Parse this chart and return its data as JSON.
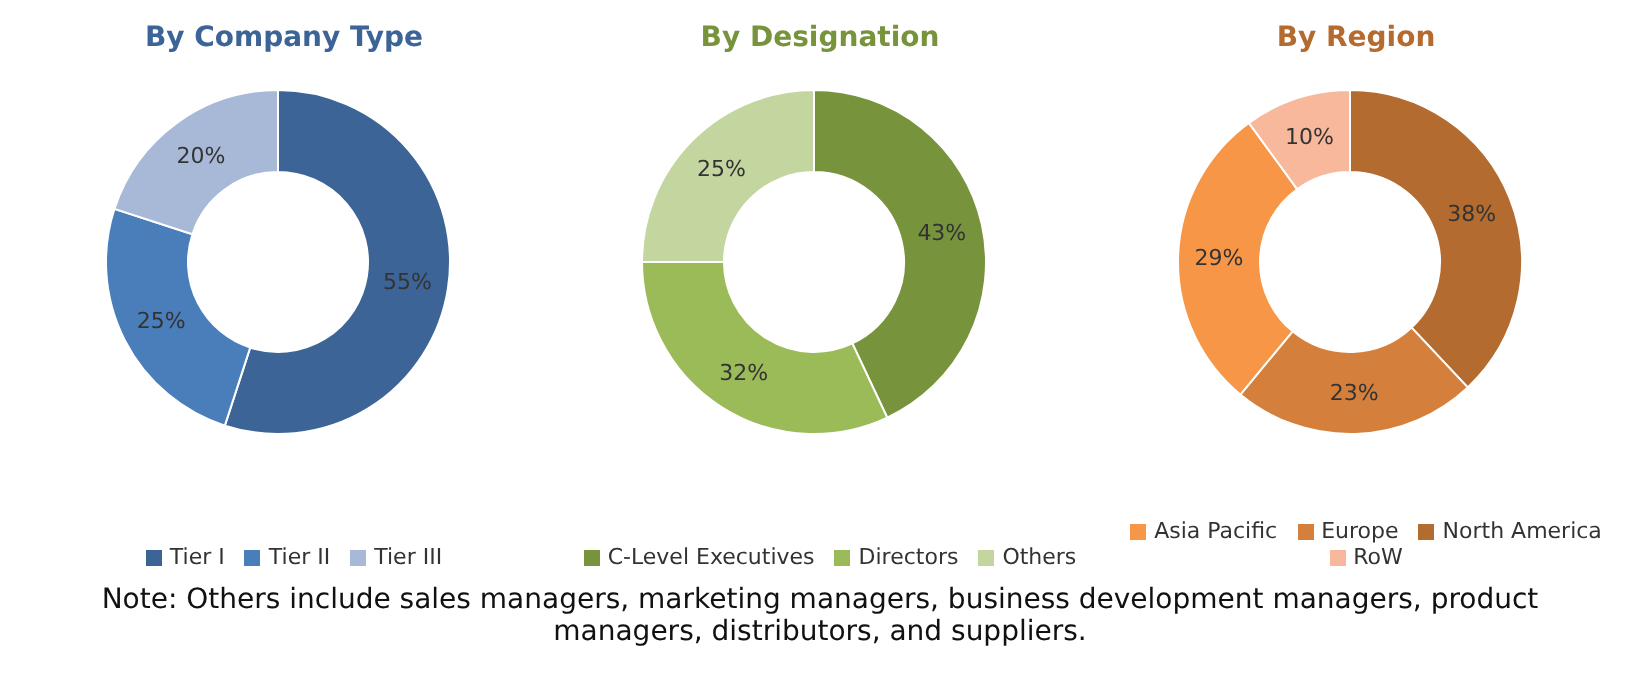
{
  "chart_data": [
    {
      "type": "donut",
      "title": "By Company Type",
      "categories": [
        "Tier I",
        "Tier II",
        "Tier III"
      ],
      "values": [
        55,
        25,
        20
      ],
      "value_labels": [
        "55%",
        "25%",
        "20%"
      ],
      "colors": [
        "#3c6496",
        "#4a7ebb",
        "#a8b9d8"
      ],
      "legend": "bottom"
    },
    {
      "type": "donut",
      "title": "By Designation",
      "categories": [
        "C-Level Executives",
        "Directors",
        "Others"
      ],
      "values": [
        43,
        32,
        25
      ],
      "value_labels": [
        "43%",
        "32%",
        "25%"
      ],
      "colors": [
        "#77933c",
        "#9bbb59",
        "#c4d6a0"
      ],
      "legend": "bottom"
    },
    {
      "type": "donut",
      "title": "By Region",
      "categories": [
        "North America",
        "Europe",
        "Asia Pacific",
        "RoW"
      ],
      "values": [
        38,
        23,
        29,
        10
      ],
      "value_labels": [
        "38%",
        "23%",
        "29%",
        "10%"
      ],
      "colors": [
        "#b36b30",
        "#d4803c",
        "#f79646",
        "#f7b89c"
      ],
      "legend": "bottom",
      "annotations": [
        "Note: Others include sales managers, marketing managers, business development managers, product managers, distributors, and suppliers."
      ]
    }
  ]
}
